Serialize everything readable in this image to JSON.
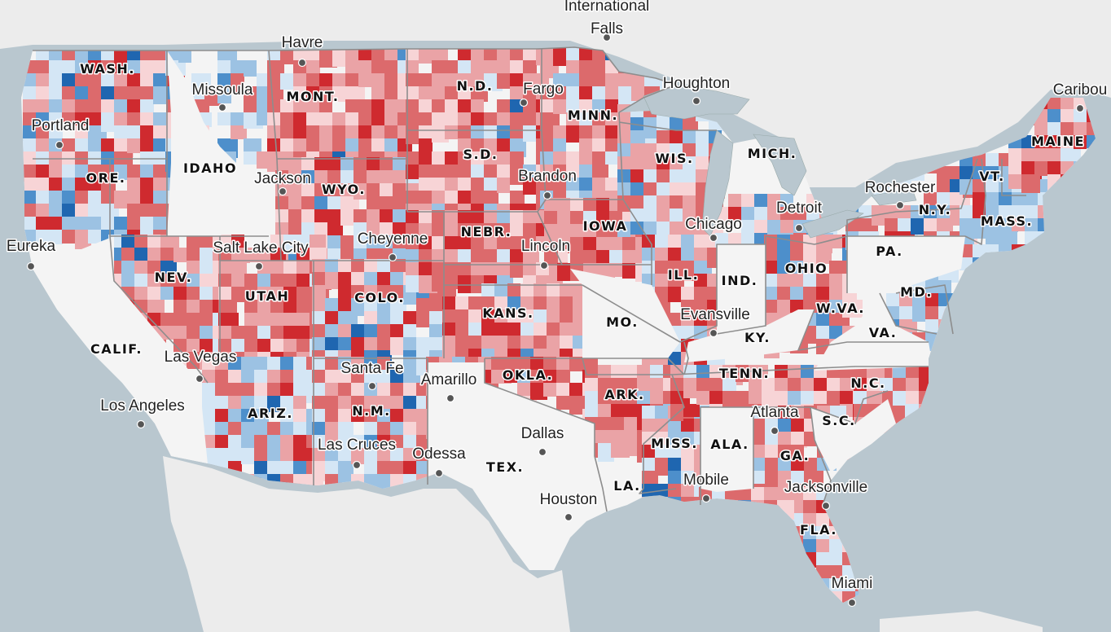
{
  "map": {
    "colors": {
      "water": "#b9c7cf",
      "land_foreign": "#ececec",
      "no_data": "#f4f4f4",
      "red_dark": "#cf2a2f",
      "red_mid": "#dc6a6c",
      "red_light": "#eaa3a6",
      "red_pale": "#f7d4d6",
      "blue_pale": "#d4e6f5",
      "blue_light": "#9cc2e3",
      "blue_mid": "#4d8fcb",
      "blue_dark": "#1f66b0"
    },
    "states": [
      {
        "id": "WA",
        "label": "WASH."
      },
      {
        "id": "OR",
        "label": "ORE."
      },
      {
        "id": "CA",
        "label": "CALIF."
      },
      {
        "id": "ID",
        "label": "IDAHO"
      },
      {
        "id": "NV",
        "label": "NEV."
      },
      {
        "id": "MT",
        "label": "MONT."
      },
      {
        "id": "WY",
        "label": "WYO."
      },
      {
        "id": "UT",
        "label": "UTAH"
      },
      {
        "id": "AZ",
        "label": "ARIZ."
      },
      {
        "id": "CO",
        "label": "COLO."
      },
      {
        "id": "NM",
        "label": "N.M."
      },
      {
        "id": "ND",
        "label": "N.D."
      },
      {
        "id": "SD",
        "label": "S.D."
      },
      {
        "id": "NE",
        "label": "NEBR."
      },
      {
        "id": "KS",
        "label": "KANS."
      },
      {
        "id": "OK",
        "label": "OKLA."
      },
      {
        "id": "TX",
        "label": "TEX."
      },
      {
        "id": "MN",
        "label": "MINN."
      },
      {
        "id": "IA",
        "label": "IOWA"
      },
      {
        "id": "MO",
        "label": "MO."
      },
      {
        "id": "AR",
        "label": "ARK."
      },
      {
        "id": "LA",
        "label": "LA."
      },
      {
        "id": "WI",
        "label": "WIS."
      },
      {
        "id": "IL",
        "label": "ILL."
      },
      {
        "id": "MI",
        "label": "MICH."
      },
      {
        "id": "IN",
        "label": "IND."
      },
      {
        "id": "OH",
        "label": "OHIO"
      },
      {
        "id": "KY",
        "label": "KY."
      },
      {
        "id": "TN",
        "label": "TENN."
      },
      {
        "id": "MS",
        "label": "MISS."
      },
      {
        "id": "AL",
        "label": "ALA."
      },
      {
        "id": "GA",
        "label": "GA."
      },
      {
        "id": "FL",
        "label": "FLA."
      },
      {
        "id": "SC",
        "label": "S.C."
      },
      {
        "id": "NC",
        "label": "N.C."
      },
      {
        "id": "VA",
        "label": "VA."
      },
      {
        "id": "WV",
        "label": "W.VA."
      },
      {
        "id": "PA",
        "label": "PA."
      },
      {
        "id": "NY",
        "label": "N.Y."
      },
      {
        "id": "MD",
        "label": "MD."
      },
      {
        "id": "VT",
        "label": "VT."
      },
      {
        "id": "MA",
        "label": "MASS."
      },
      {
        "id": "ME",
        "label": "MAINE"
      }
    ],
    "cities": [
      {
        "id": "international-falls",
        "name": "International\nFalls"
      },
      {
        "id": "havre",
        "name": "Havre"
      },
      {
        "id": "missoula",
        "name": "Missoula"
      },
      {
        "id": "portland",
        "name": "Portland"
      },
      {
        "id": "fargo",
        "name": "Fargo"
      },
      {
        "id": "houghton",
        "name": "Houghton"
      },
      {
        "id": "caribou",
        "name": "Caribou"
      },
      {
        "id": "jackson",
        "name": "Jackson"
      },
      {
        "id": "brandon",
        "name": "Brandon"
      },
      {
        "id": "rochester",
        "name": "Rochester"
      },
      {
        "id": "detroit",
        "name": "Detroit"
      },
      {
        "id": "chicago",
        "name": "Chicago"
      },
      {
        "id": "eureka",
        "name": "Eureka"
      },
      {
        "id": "salt-lake-city",
        "name": "Salt Lake City"
      },
      {
        "id": "cheyenne",
        "name": "Cheyenne"
      },
      {
        "id": "lincoln",
        "name": "Lincoln"
      },
      {
        "id": "evansville",
        "name": "Evansville"
      },
      {
        "id": "las-vegas",
        "name": "Las Vegas"
      },
      {
        "id": "santa-fe",
        "name": "Santa Fe"
      },
      {
        "id": "amarillo",
        "name": "Amarillo"
      },
      {
        "id": "atlanta",
        "name": "Atlanta"
      },
      {
        "id": "los-angeles",
        "name": "Los Angeles"
      },
      {
        "id": "las-cruces",
        "name": "Las Cruces"
      },
      {
        "id": "odessa",
        "name": "Odessa"
      },
      {
        "id": "dallas",
        "name": "Dallas"
      },
      {
        "id": "mobile",
        "name": "Mobile"
      },
      {
        "id": "jacksonville",
        "name": "Jacksonville"
      },
      {
        "id": "houston",
        "name": "Houston"
      },
      {
        "id": "miami",
        "name": "Miami"
      }
    ]
  }
}
